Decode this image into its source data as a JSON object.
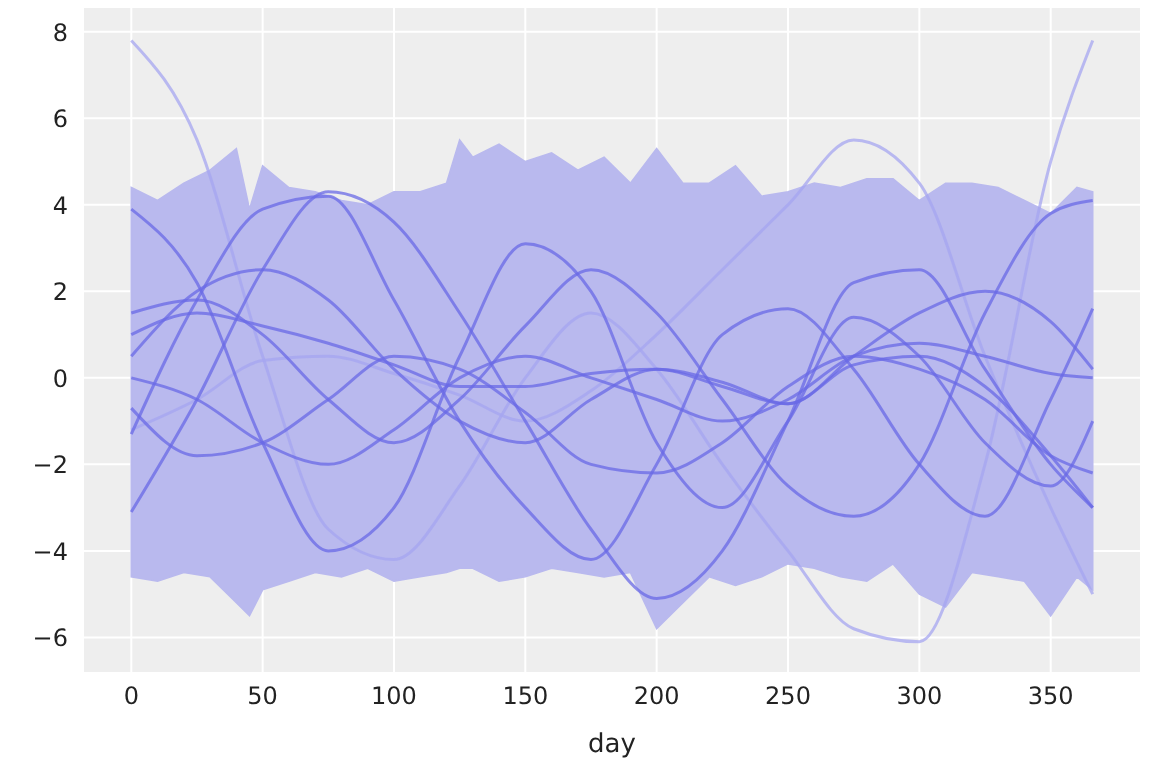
{
  "chart_data": {
    "type": "line",
    "xlabel": "day",
    "xlim": [
      -18,
      384
    ],
    "ylim": [
      -6.8,
      8.55
    ],
    "xticks": [
      0,
      50,
      100,
      150,
      200,
      250,
      300,
      350
    ],
    "yticks": [
      {
        "value": -6,
        "label": "−6"
      },
      {
        "value": -4,
        "label": "−4"
      },
      {
        "value": -2,
        "label": "−2"
      },
      0,
      2,
      4,
      6,
      8
    ],
    "grid": true,
    "marker": "none",
    "line_style": "solid",
    "x": [
      0,
      25,
      50,
      75,
      100,
      125,
      150,
      175,
      200,
      225,
      250,
      275,
      300,
      325,
      350,
      366
    ],
    "series": [
      {
        "color": "#b9b9ee",
        "x": [
          0,
          10,
          20,
          30,
          40,
          45,
          50,
          60,
          70,
          80,
          90,
          100,
          110,
          120,
          125,
          130,
          140,
          150,
          160,
          170,
          180,
          190,
          200,
          210,
          220,
          230,
          240,
          250,
          260,
          270,
          280,
          290,
          300,
          310,
          320,
          330,
          340,
          350,
          360,
          366
        ],
        "values": [
          null,
          null,
          null,
          null,
          null,
          null,
          null,
          null,
          null,
          null,
          null,
          null,
          null,
          null,
          null,
          null,
          null,
          null,
          null,
          null,
          null,
          null,
          null,
          null,
          null,
          null,
          null,
          null,
          null,
          null,
          null,
          null,
          null,
          null,
          null,
          null,
          null,
          null,
          null,
          null
        ],
        "upper": [
          4.4,
          4.1,
          4.5,
          4.8,
          5.3,
          3.9,
          4.9,
          4.4,
          4.3,
          4.1,
          4.0,
          4.3,
          4.3,
          4.5,
          5.5,
          5.1,
          5.4,
          5.0,
          5.2,
          4.8,
          5.1,
          4.5,
          5.3,
          4.5,
          4.5,
          4.9,
          4.2,
          4.3,
          4.5,
          4.4,
          4.6,
          4.6,
          4.1,
          4.5,
          4.5,
          4.4,
          4.1,
          3.8,
          4.4,
          4.3
        ],
        "lower": [
          -4.6,
          -4.7,
          -4.5,
          -4.6,
          -5.2,
          -5.5,
          -4.9,
          -4.7,
          -4.5,
          -4.6,
          -4.4,
          -4.7,
          -4.6,
          -4.5,
          -4.4,
          -4.4,
          -4.7,
          -4.6,
          -4.4,
          -4.5,
          -4.6,
          -4.5,
          -5.8,
          -5.2,
          -4.6,
          -4.8,
          -4.6,
          -4.3,
          -4.4,
          -4.6,
          -4.7,
          -4.3,
          -5.0,
          -5.3,
          -4.5,
          -4.6,
          -4.7,
          -5.5,
          -4.6,
          -4.9
        ]
      },
      {
        "color": "#a6a6f0",
        "values": [
          7.8,
          5.5,
          0.5,
          -3.5,
          -4.2,
          -2.5,
          0,
          1.5,
          0.2,
          -2,
          -4,
          -5.8,
          -6.1,
          -2,
          5,
          7.8
        ]
      },
      {
        "color": "#a6a6f0",
        "values": [
          -1.2,
          -0.5,
          0.4,
          0.5,
          0.1,
          -0.4,
          -1.0,
          -0.3,
          1.0,
          2.5,
          4.0,
          5.5,
          4.5,
          0.5,
          -3.0,
          -5.0
        ]
      },
      {
        "color": "#6a6ae6",
        "values": [
          3.9,
          2.2,
          -1.5,
          -4.0,
          -3.0,
          0.5,
          3.1,
          2.0,
          -1.5,
          -3.0,
          -1.0,
          1.4,
          0.5,
          -1.5,
          -2.5,
          -1.0
        ]
      },
      {
        "color": "#6a6ae6",
        "values": [
          -3.1,
          -0.5,
          2.5,
          4.3,
          3.6,
          1.5,
          -1.0,
          -3.5,
          -5.1,
          -4.0,
          -1.0,
          2.2,
          2.5,
          0.2,
          -2.0,
          -3.0
        ]
      },
      {
        "color": "#6a6ae6",
        "values": [
          -1.3,
          1.8,
          3.9,
          4.2,
          1.8,
          -1.0,
          -3.0,
          -4.2,
          -2.0,
          1.0,
          1.6,
          0.2,
          -2.0,
          -3.2,
          -0.5,
          1.6
        ]
      },
      {
        "color": "#6a6ae6",
        "values": [
          1.5,
          1.8,
          1.0,
          -0.5,
          -1.5,
          -0.5,
          1.2,
          2.5,
          1.5,
          -0.5,
          -2.5,
          -3.2,
          -2.0,
          1.5,
          3.8,
          4.1
        ]
      },
      {
        "color": "#6a6ae6",
        "values": [
          0.5,
          2.0,
          2.5,
          1.8,
          0.2,
          -1.0,
          -1.5,
          -0.5,
          0.2,
          -0.2,
          -0.6,
          0.5,
          1.5,
          2.0,
          1.3,
          0.2
        ]
      },
      {
        "color": "#6a6ae6",
        "values": [
          -0.7,
          -1.8,
          -1.5,
          -0.5,
          0.5,
          0.2,
          -0.8,
          -2.0,
          -2.2,
          -1.5,
          -0.2,
          0.5,
          0.2,
          -0.5,
          -1.8,
          -2.2
        ]
      },
      {
        "color": "#6a6ae6",
        "values": [
          0.0,
          -0.5,
          -1.5,
          -2.0,
          -1.2,
          0.0,
          0.5,
          0.0,
          -0.5,
          -1.0,
          -0.5,
          0.5,
          0.8,
          0.5,
          0.1,
          0.0
        ]
      },
      {
        "color": "#6a6ae6",
        "values": [
          1.0,
          1.5,
          1.2,
          0.8,
          0.3,
          -0.2,
          -0.2,
          0.1,
          0.2,
          -0.1,
          -0.6,
          0.3,
          0.5,
          -0.2,
          -1.8,
          -3.0
        ]
      }
    ]
  }
}
